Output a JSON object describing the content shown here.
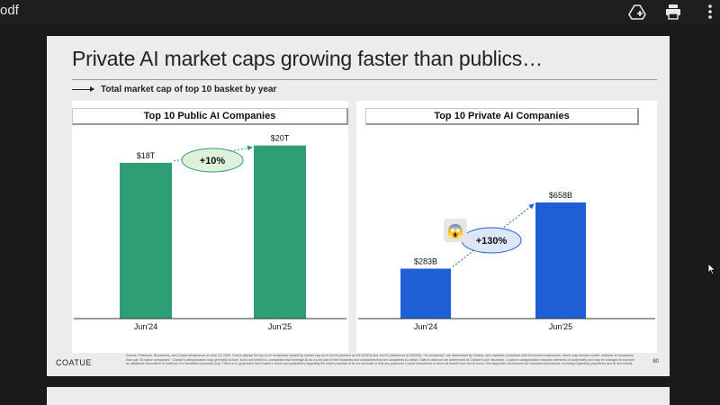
{
  "viewer": {
    "file_title": "odf",
    "icons": [
      "add-to-drive-icon",
      "print-icon",
      "more-vert-icon"
    ]
  },
  "slide": {
    "title": "Private AI market caps growing faster than publics…",
    "subtitle": "Total market cap of top 10 basket by year",
    "brand": "COATUE",
    "page_number": "80",
    "footnote": "Source: Pitchbook, Bloomberg, and Coatue Analysis as of June 13, 2025. Charts display the top 10 AI companies ranked by market cap as of Jun'24 (defined as 6/13/2024) and Jun'25 (defined as 6/13/2025). \"AI companies\" are determined by Coatue, and captures companies with AI-focused businesses, which may include a wider universe of companies than just \"AI native companies\". Coatue's categorization may generally include, but is not limited to, companies that leverage AI as a core part of their business and companies that are considered AI-native. Edits to data set are determined at Coatue's sole discretion. Coatue's categorization includes elements of subjectivity and may be changed at any time as additional information is received. For illustrative purposes only. There is no guarantee that Coatue's views and projections regarding the future potential of AI are accurate or that any particular Coatue investment or fund will benefit from the AI trend. See Appendix–Disclosures for important disclosures, including regarding projections and AI and trends."
  },
  "chart_data": [
    {
      "type": "bar",
      "title": "Top 10 Public AI Companies",
      "categories": [
        "Jun'24",
        "Jun'25"
      ],
      "values": [
        18,
        20
      ],
      "data_labels": [
        "$18T",
        "$20T"
      ],
      "unit": "$T",
      "change_label": "+10%",
      "bar_color": "#2e9e74",
      "callout_color": "#dff0dc",
      "ylim": [
        0,
        21
      ]
    },
    {
      "type": "bar",
      "title": "Top 10 Private AI Companies",
      "categories": [
        "Jun'24",
        "Jun'25"
      ],
      "values": [
        283,
        658
      ],
      "data_labels": [
        "$283B",
        "$658B"
      ],
      "unit": "$B",
      "change_label": "+130%",
      "emoji": "😱",
      "bar_color": "#1f5fd6",
      "callout_color": "#dde6f5",
      "ylim": [
        0,
        1030
      ]
    }
  ]
}
